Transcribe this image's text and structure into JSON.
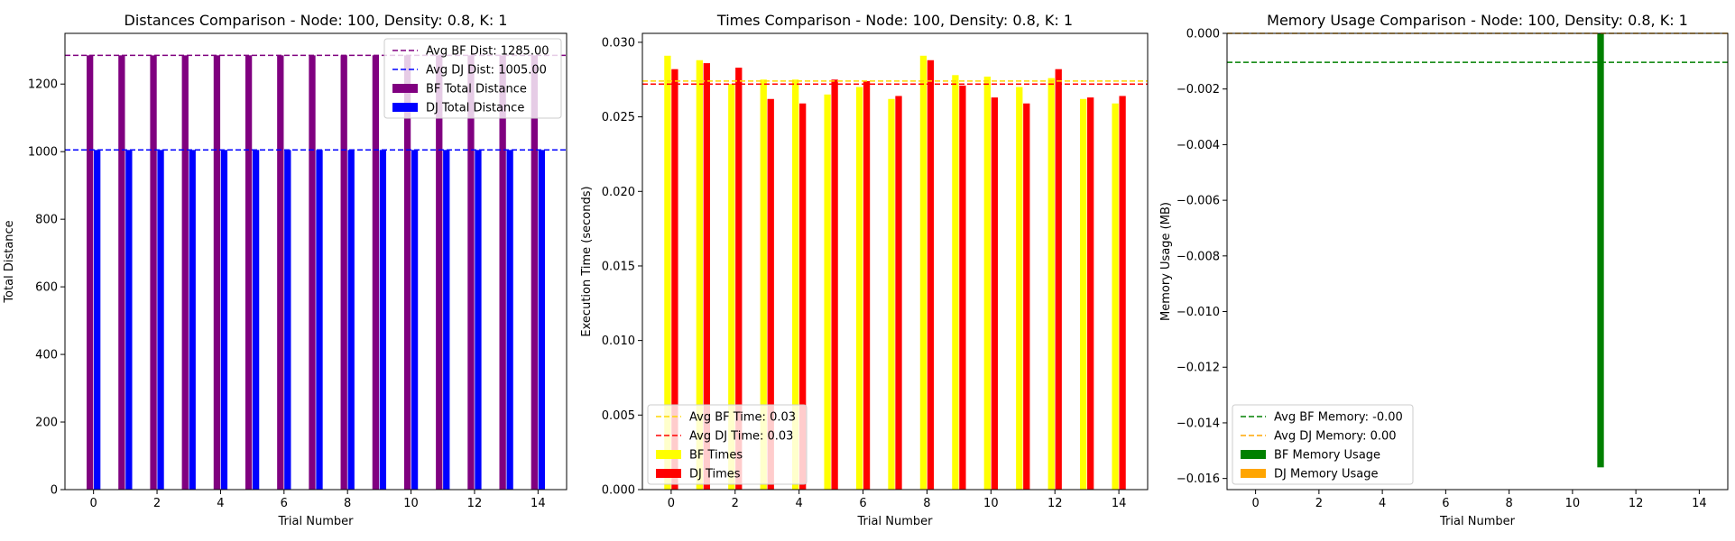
{
  "chart_data": [
    {
      "type": "bar",
      "title": "Distances Comparison - Node: 100, Density: 0.8, K: 1",
      "xlabel": "Trial Number",
      "ylabel": "Total Distance",
      "x": [
        0,
        1,
        2,
        3,
        4,
        5,
        6,
        7,
        8,
        9,
        10,
        11,
        12,
        13,
        14
      ],
      "xlim": [
        -0.9,
        14.9
      ],
      "ylim": [
        0,
        1350
      ],
      "xticks": [
        0,
        2,
        4,
        6,
        8,
        10,
        12,
        14
      ],
      "yticks": [
        0,
        200,
        400,
        600,
        800,
        1000,
        1200
      ],
      "ytick_labels": [
        "0",
        "200",
        "400",
        "600",
        "800",
        "1000",
        "1200"
      ],
      "grid": false,
      "legend_position": "top-right",
      "series": [
        {
          "name": "BF Total Distance",
          "color": "#800080",
          "values": [
            1285,
            1285,
            1285,
            1285,
            1285,
            1285,
            1285,
            1285,
            1285,
            1285,
            1285,
            1285,
            1285,
            1285,
            1285
          ]
        },
        {
          "name": "DJ Total Distance",
          "color": "#0000ff",
          "values": [
            1005,
            1005,
            1005,
            1005,
            1005,
            1005,
            1005,
            1005,
            1005,
            1005,
            1005,
            1005,
            1005,
            1005,
            1005
          ]
        }
      ],
      "reference_lines": [
        {
          "name": "Avg BF Dist: 1285.00",
          "value": 1285,
          "color": "#800080"
        },
        {
          "name": "Avg DJ Dist: 1005.00",
          "value": 1005,
          "color": "#0000ff"
        }
      ]
    },
    {
      "type": "bar",
      "title": "Times Comparison - Node: 100, Density: 0.8, K: 1",
      "xlabel": "Trial Number",
      "ylabel": "Execution Time (seconds)",
      "x": [
        0,
        1,
        2,
        3,
        4,
        5,
        6,
        7,
        8,
        9,
        10,
        11,
        12,
        13,
        14
      ],
      "xlim": [
        -0.9,
        14.9
      ],
      "ylim": [
        0,
        0.0306
      ],
      "xticks": [
        0,
        2,
        4,
        6,
        8,
        10,
        12,
        14
      ],
      "yticks": [
        0,
        0.005,
        0.01,
        0.015,
        0.02,
        0.025,
        0.03
      ],
      "ytick_labels": [
        "0.000",
        "0.005",
        "0.010",
        "0.015",
        "0.020",
        "0.025",
        "0.030"
      ],
      "grid": false,
      "legend_position": "bottom-left",
      "series": [
        {
          "name": "BF Times",
          "color": "#ffff00",
          "values": [
            0.0291,
            0.0288,
            0.0272,
            0.0275,
            0.0275,
            0.0265,
            0.027,
            0.0262,
            0.0291,
            0.0278,
            0.0277,
            0.027,
            0.0276,
            0.0262,
            0.0259
          ]
        },
        {
          "name": "DJ Times",
          "color": "#ff0000",
          "values": [
            0.0282,
            0.0286,
            0.0283,
            0.0262,
            0.0259,
            0.0275,
            0.0274,
            0.0264,
            0.0288,
            0.0271,
            0.0263,
            0.0259,
            0.0282,
            0.0263,
            0.0264
          ]
        }
      ],
      "reference_lines": [
        {
          "name": "Avg BF Time: 0.03",
          "value": 0.0274,
          "color": "#ffd700"
        },
        {
          "name": "Avg DJ Time: 0.03",
          "value": 0.0272,
          "color": "#ff0000"
        }
      ]
    },
    {
      "type": "bar",
      "title": "Memory Usage Comparison - Node: 100, Density: 0.8, K: 1",
      "xlabel": "Trial Number",
      "ylabel": "Memory Usage (MB)",
      "x": [
        0,
        1,
        2,
        3,
        4,
        5,
        6,
        7,
        8,
        9,
        10,
        11,
        12,
        13,
        14
      ],
      "xlim": [
        -0.9,
        14.9
      ],
      "ylim": [
        -0.0164,
        0
      ],
      "xticks": [
        0,
        2,
        4,
        6,
        8,
        10,
        12,
        14
      ],
      "yticks": [
        0,
        -0.002,
        -0.004,
        -0.006,
        -0.008,
        -0.01,
        -0.012,
        -0.014,
        -0.016
      ],
      "ytick_labels": [
        "0.000",
        "−0.002",
        "−0.004",
        "−0.006",
        "−0.008",
        "−0.010",
        "−0.012",
        "−0.014",
        "−0.016"
      ],
      "grid": false,
      "legend_position": "bottom-left",
      "series": [
        {
          "name": "BF Memory Usage",
          "color": "#008000",
          "values": [
            0,
            0,
            0,
            0,
            0,
            0,
            0,
            0,
            0,
            0,
            0,
            -0.0156,
            0,
            0,
            0
          ]
        },
        {
          "name": "DJ Memory Usage",
          "color": "#ffa500",
          "values": [
            0,
            0,
            0,
            0,
            0,
            0,
            0,
            0,
            0,
            0,
            0,
            0,
            0,
            0,
            0
          ]
        }
      ],
      "reference_lines": [
        {
          "name": "Avg BF Memory: -0.00",
          "value": -0.00104,
          "color": "#008000"
        },
        {
          "name": "Avg DJ Memory: 0.00",
          "value": 0,
          "color": "#ffa500"
        }
      ]
    }
  ]
}
